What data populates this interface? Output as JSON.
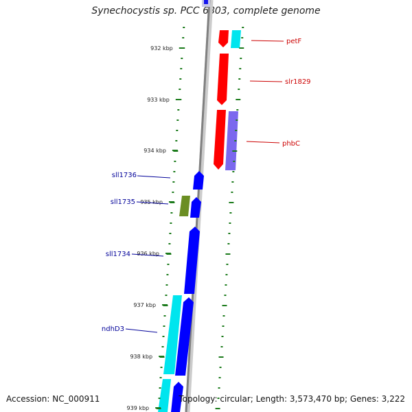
{
  "title": "Synechocystis sp. PCC 6803, complete genome",
  "footer": {
    "accession": "Accession: NC_000911",
    "summary": "Topology: circular; Length: 3,573,470 bp; Genes: 3,222"
  },
  "ruler": {
    "unit": "kbp",
    "start_kbp": 931.6,
    "end_kbp": 939.3,
    "labeled_ticks": [
      "932 kbp",
      "933 kbp",
      "934 kbp",
      "935 kbp",
      "936 kbp",
      "937 kbp",
      "938 kbp",
      "939 kbp"
    ]
  },
  "genes": [
    {
      "name": "petF",
      "strand": "forward",
      "color": "#ff0000",
      "label_color": "#cc0000"
    },
    {
      "name": "slr1829",
      "strand": "forward",
      "color": "#ff0000",
      "label_color": "#cc0000"
    },
    {
      "name": "phbC",
      "strand": "forward",
      "color": "#ff0000",
      "label_color": "#cc0000"
    },
    {
      "name": "sll1736",
      "strand": "reverse",
      "color": "#0000ff",
      "label_color": "#000099"
    },
    {
      "name": "sll1735",
      "strand": "reverse",
      "color": "#0000ff",
      "label_color": "#000099"
    },
    {
      "name": "sll1734",
      "strand": "reverse",
      "color": "#0000ff",
      "label_color": "#000099"
    },
    {
      "name": "ndhD3",
      "strand": "reverse",
      "color": "#0000ff",
      "label_color": "#000099"
    }
  ],
  "colors": {
    "cds": "#ff0000",
    "cds_reverse": "#0000ff",
    "forward_other": "#00e5ee",
    "forward_other_2": "#7b68ee",
    "reverse_other": "#6b8e23",
    "backbone": "#888888",
    "tick": "#1a7a1a"
  }
}
